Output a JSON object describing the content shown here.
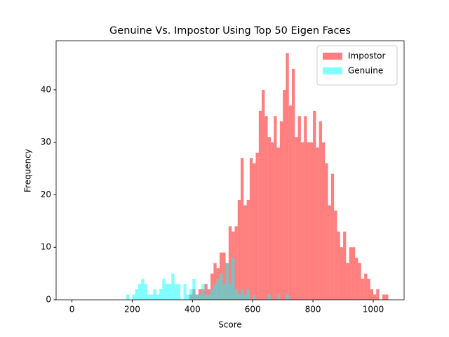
{
  "chart_data": {
    "type": "histogram",
    "title": "Genuine Vs. Impostor Using Top 50 Eigen Faces",
    "xlabel": "Score",
    "ylabel": "Frequency",
    "xlim": [
      -52.5,
      1102.5
    ],
    "xticks": [
      0,
      200,
      400,
      600,
      800,
      1000
    ],
    "ylim": [
      0,
      49.35
    ],
    "yticks": [
      0,
      10,
      20,
      30,
      40
    ],
    "legend": "upper right",
    "series": [
      {
        "name": "Impostor",
        "color": "#ff0000",
        "bins": [
          390,
          400,
          410,
          420,
          430,
          440,
          450,
          460,
          470,
          480,
          490,
          500,
          510,
          520,
          530,
          540,
          550,
          560,
          570,
          580,
          590,
          600,
          610,
          620,
          630,
          640,
          650,
          660,
          670,
          680,
          690,
          700,
          710,
          720,
          730,
          740,
          750,
          760,
          770,
          780,
          790,
          800,
          810,
          820,
          830,
          840,
          850,
          860,
          870,
          880,
          890,
          900,
          910,
          920,
          930,
          940,
          950,
          960,
          970,
          980,
          990,
          1000,
          1010,
          1020,
          1030,
          1040,
          1050
        ],
        "values": [
          1,
          2,
          1,
          2,
          2,
          3,
          2,
          5,
          7,
          6,
          9,
          9,
          7,
          14,
          13,
          14,
          19,
          27,
          18,
          19,
          27,
          26,
          28,
          36,
          40,
          35,
          31,
          30,
          35,
          29,
          34,
          40,
          47,
          37,
          44,
          31,
          35,
          30,
          35,
          30,
          30,
          36,
          29,
          34,
          30,
          26,
          18,
          24,
          17,
          13,
          10,
          13,
          7,
          10,
          10,
          8,
          7,
          4,
          5,
          4,
          2,
          1,
          2,
          0,
          1,
          1
        ]
      },
      {
        "name": "Genuine",
        "color": "#00ffff",
        "bins": [
          180,
          190,
          200,
          210,
          220,
          230,
          240,
          250,
          260,
          270,
          280,
          290,
          300,
          310,
          320,
          330,
          340,
          350,
          360,
          370,
          380,
          390,
          400,
          410,
          420,
          430,
          440,
          450,
          460,
          470,
          480,
          490,
          500,
          510,
          520,
          530,
          540,
          550,
          560,
          570,
          580,
          590,
          600,
          610,
          620,
          630,
          640,
          650,
          660,
          670,
          680,
          690,
          700,
          710,
          720,
          730,
          740,
          750,
          760
        ],
        "values": [
          1,
          0,
          1,
          2,
          3,
          4,
          3,
          1,
          1,
          2,
          1,
          2,
          4,
          3,
          3,
          5,
          3,
          3,
          0,
          3,
          1,
          2,
          4,
          1,
          1,
          3,
          1,
          1,
          2,
          3,
          4,
          5,
          3,
          7,
          3,
          8,
          2,
          1,
          2,
          1,
          2,
          0,
          1,
          0,
          0,
          0,
          0,
          1,
          0,
          0,
          1,
          0,
          0,
          1,
          0,
          0,
          0,
          0
        ]
      }
    ]
  }
}
